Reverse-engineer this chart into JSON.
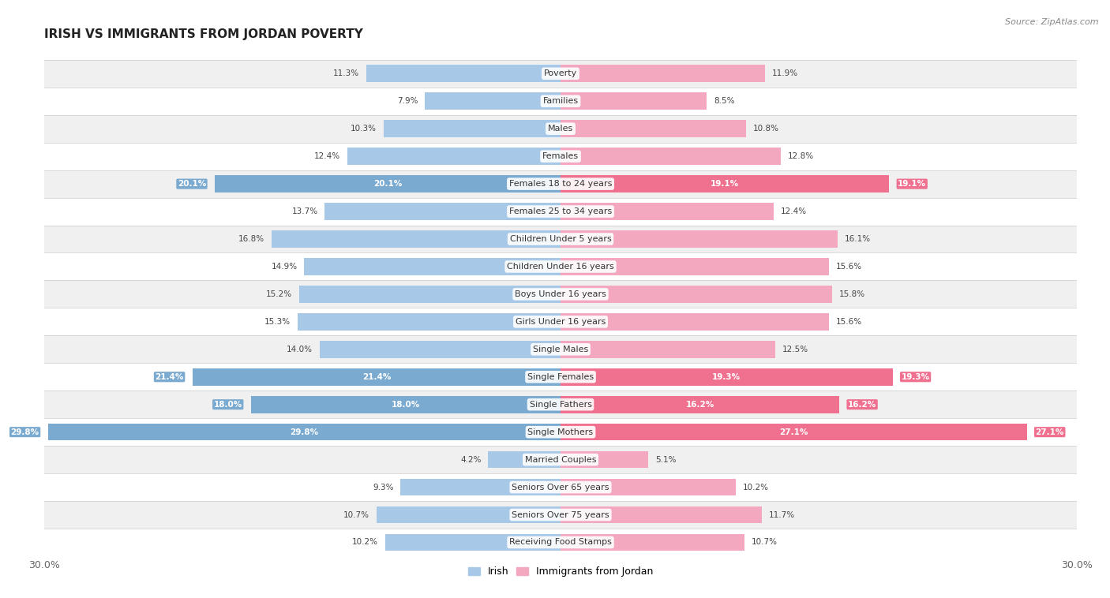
{
  "title": "IRISH VS IMMIGRANTS FROM JORDAN POVERTY",
  "source": "Source: ZipAtlas.com",
  "categories": [
    "Poverty",
    "Families",
    "Males",
    "Females",
    "Females 18 to 24 years",
    "Females 25 to 34 years",
    "Children Under 5 years",
    "Children Under 16 years",
    "Boys Under 16 years",
    "Girls Under 16 years",
    "Single Males",
    "Single Females",
    "Single Fathers",
    "Single Mothers",
    "Married Couples",
    "Seniors Over 65 years",
    "Seniors Over 75 years",
    "Receiving Food Stamps"
  ],
  "irish_values": [
    11.3,
    7.9,
    10.3,
    12.4,
    20.1,
    13.7,
    16.8,
    14.9,
    15.2,
    15.3,
    14.0,
    21.4,
    18.0,
    29.8,
    4.2,
    9.3,
    10.7,
    10.2
  ],
  "jordan_values": [
    11.9,
    8.5,
    10.8,
    12.8,
    19.1,
    12.4,
    16.1,
    15.6,
    15.8,
    15.6,
    12.5,
    19.3,
    16.2,
    27.1,
    5.1,
    10.2,
    11.7,
    10.7
  ],
  "irish_color": "#a8c8e8",
  "jordan_color": "#f4a8c0",
  "irish_highlight_color": "#7aaad0",
  "jordan_highlight_color": "#f07090",
  "highlight_rows": [
    4,
    11,
    12,
    13
  ],
  "max_value": 30.0,
  "bg_color": "#ffffff",
  "row_alt_color": "#f0f0f0",
  "row_main_color": "#ffffff",
  "title_fontsize": 11,
  "label_fontsize": 8,
  "value_fontsize": 7.5,
  "legend_labels": [
    "Irish",
    "Immigrants from Jordan"
  ]
}
